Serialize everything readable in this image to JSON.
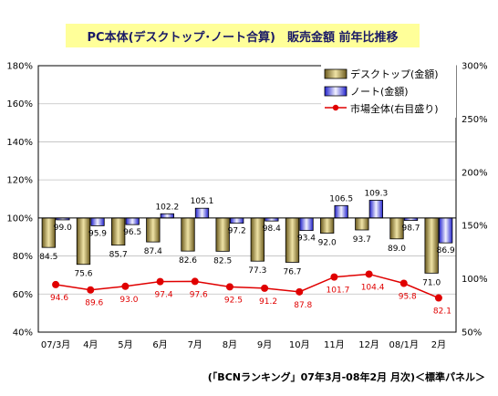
{
  "title": "PC本体(デスクトップ･ノート合算)　販売金額 前年比推移",
  "footnote": "(「BCNランキング」07年3月-08年2月 月次)＜標準パネル＞",
  "colors": {
    "desktop": "#b8a35a",
    "notebook": "#6666ee",
    "market": "#e00000",
    "title_bg": "#ffff99"
  },
  "chart_data": {
    "type": "bar",
    "categories": [
      "07/3月",
      "4月",
      "5月",
      "6月",
      "7月",
      "8月",
      "9月",
      "10月",
      "11月",
      "12月",
      "08/1月",
      "2月"
    ],
    "series": [
      {
        "name": "デスクトップ(金額)",
        "type": "bar",
        "axis": "left",
        "values": [
          84.5,
          75.6,
          85.7,
          87.4,
          82.6,
          82.5,
          77.3,
          76.7,
          92.0,
          93.7,
          89.0,
          71.0
        ]
      },
      {
        "name": "ノート(金額)",
        "type": "bar",
        "axis": "left",
        "values": [
          99.0,
          95.9,
          96.5,
          102.2,
          105.1,
          97.2,
          98.4,
          93.4,
          106.5,
          109.3,
          98.7,
          86.9
        ]
      },
      {
        "name": "市場全体(右目盛り)",
        "type": "line",
        "axis": "right",
        "values": [
          94.6,
          89.6,
          93.0,
          97.4,
          97.6,
          92.5,
          91.2,
          87.8,
          101.7,
          104.4,
          95.8,
          82.1
        ]
      }
    ],
    "ylim_left": [
      40,
      180
    ],
    "yticks_left": [
      "40%",
      "60%",
      "80%",
      "100%",
      "120%",
      "140%",
      "160%",
      "180%"
    ],
    "ylim_right": [
      50,
      300
    ],
    "yticks_right": [
      "50%",
      "100%",
      "150%",
      "200%",
      "250%",
      "300%"
    ],
    "baseline_left": 100,
    "legend_position": "top-right"
  }
}
